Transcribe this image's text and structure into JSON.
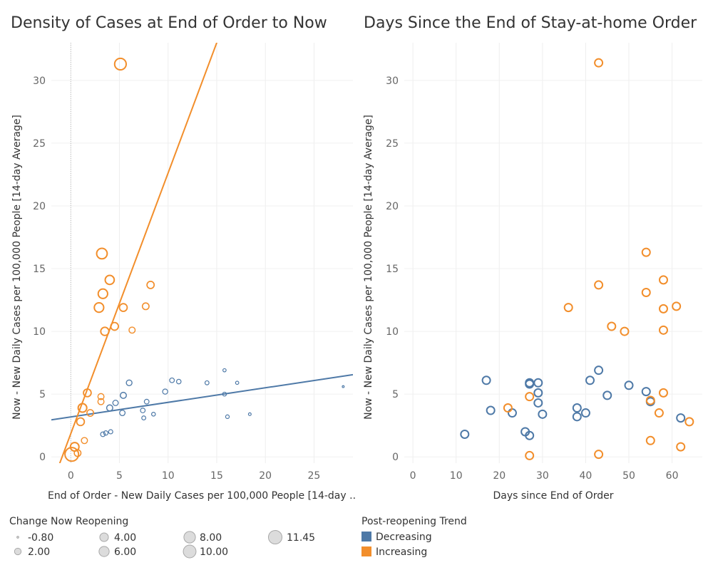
{
  "chart_data": [
    {
      "type": "scatter",
      "title": "Density of Cases at End of Order to Now",
      "xlabel": "End of Order - New Daily Cases per 100,000 People [14-day ..",
      "ylabel": "Now - New Daily Cases per 100,000 People [14-day Average]",
      "xlim": [
        -2,
        29
      ],
      "ylim": [
        -0.5,
        33
      ],
      "x_ticks": [
        "0",
        "5",
        "10",
        "15",
        "20",
        "25"
      ],
      "y_ticks": [
        "0",
        "5",
        "10",
        "15",
        "20",
        "25",
        "30"
      ],
      "grid": true,
      "series": [
        {
          "name": "Decreasing",
          "color": "#4e79a7",
          "points": [
            {
              "x": 3.3,
              "y": 1.8,
              "size": 0.5
            },
            {
              "x": 3.6,
              "y": 1.9,
              "size": 0.3
            },
            {
              "x": 4.1,
              "y": 2.0,
              "size": 0.2
            },
            {
              "x": 4.0,
              "y": 3.9,
              "size": 1.5
            },
            {
              "x": 4.6,
              "y": 4.3,
              "size": 1.0
            },
            {
              "x": 5.3,
              "y": 3.5,
              "size": 1.0
            },
            {
              "x": 5.4,
              "y": 4.9,
              "size": 1.5
            },
            {
              "x": 6.0,
              "y": 5.9,
              "size": 1.2
            },
            {
              "x": 7.4,
              "y": 3.7,
              "size": 0.5
            },
            {
              "x": 7.5,
              "y": 3.1,
              "size": 0.1
            },
            {
              "x": 7.8,
              "y": 4.4,
              "size": 0.5
            },
            {
              "x": 8.5,
              "y": 3.4,
              "size": 0.0
            },
            {
              "x": 9.7,
              "y": 5.2,
              "size": 0.8
            },
            {
              "x": 10.4,
              "y": 6.1,
              "size": 0.5
            },
            {
              "x": 11.1,
              "y": 6.0,
              "size": 0.4
            },
            {
              "x": 14.0,
              "y": 5.9,
              "size": 0.1
            },
            {
              "x": 15.8,
              "y": 6.9,
              "size": -0.3
            },
            {
              "x": 15.8,
              "y": 5.0,
              "size": 0.0
            },
            {
              "x": 16.1,
              "y": 3.2,
              "size": -0.1
            },
            {
              "x": 17.1,
              "y": 5.9,
              "size": -0.3
            },
            {
              "x": 18.4,
              "y": 3.4,
              "size": -0.5
            },
            {
              "x": 28.0,
              "y": 5.6,
              "size": -0.8
            }
          ]
        },
        {
          "name": "Increasing",
          "color": "#f28e2b",
          "points": [
            {
              "x": 5.1,
              "y": 31.3,
              "size": 8.0
            },
            {
              "x": 3.2,
              "y": 16.2,
              "size": 6.5
            },
            {
              "x": 4.0,
              "y": 14.1,
              "size": 4.5
            },
            {
              "x": 8.2,
              "y": 13.7,
              "size": 2.5
            },
            {
              "x": 3.3,
              "y": 13.0,
              "size": 5.0
            },
            {
              "x": 2.9,
              "y": 11.9,
              "size": 5.0
            },
            {
              "x": 5.4,
              "y": 11.9,
              "size": 3.0
            },
            {
              "x": 7.7,
              "y": 12.0,
              "size": 2.0
            },
            {
              "x": 4.5,
              "y": 10.4,
              "size": 3.0
            },
            {
              "x": 3.5,
              "y": 10.0,
              "size": 3.5
            },
            {
              "x": 6.3,
              "y": 10.1,
              "size": 1.5
            },
            {
              "x": 1.7,
              "y": 5.1,
              "size": 3.0
            },
            {
              "x": 3.1,
              "y": 4.8,
              "size": 1.5
            },
            {
              "x": 3.1,
              "y": 4.4,
              "size": 1.5
            },
            {
              "x": 1.2,
              "y": 3.9,
              "size": 4.0
            },
            {
              "x": 2.0,
              "y": 3.5,
              "size": 2.0
            },
            {
              "x": 1.0,
              "y": 2.8,
              "size": 3.0
            },
            {
              "x": 1.4,
              "y": 1.3,
              "size": 1.5
            },
            {
              "x": 0.4,
              "y": 0.8,
              "size": 4.0
            },
            {
              "x": 0.7,
              "y": 0.3,
              "size": 2.0
            },
            {
              "x": 0.1,
              "y": 0.2,
              "size": 11.45
            }
          ]
        }
      ]
    },
    {
      "type": "scatter",
      "title": "Days Since the End of Stay-at-home Order",
      "xlabel": "Days since End of Order",
      "ylabel": "Now - New Daily Cases per 100,000 People [14-day Average]",
      "xlim": [
        -2,
        67
      ],
      "ylim": [
        -0.5,
        33
      ],
      "x_ticks": [
        "0",
        "10",
        "20",
        "30",
        "40",
        "50",
        "60"
      ],
      "y_ticks": [
        "0",
        "5",
        "10",
        "15",
        "20",
        "25",
        "30"
      ],
      "grid": true,
      "series": [
        {
          "name": "Decreasing",
          "color": "#4e79a7",
          "points": [
            {
              "x": 12,
              "y": 1.8
            },
            {
              "x": 17,
              "y": 6.1
            },
            {
              "x": 18,
              "y": 3.7
            },
            {
              "x": 23,
              "y": 3.5
            },
            {
              "x": 26,
              "y": 2.0
            },
            {
              "x": 27,
              "y": 1.7
            },
            {
              "x": 27,
              "y": 5.9
            },
            {
              "x": 27,
              "y": 5.8
            },
            {
              "x": 29,
              "y": 5.9
            },
            {
              "x": 29,
              "y": 5.1
            },
            {
              "x": 29,
              "y": 4.3
            },
            {
              "x": 30,
              "y": 3.4
            },
            {
              "x": 38,
              "y": 3.9
            },
            {
              "x": 38,
              "y": 3.2
            },
            {
              "x": 40,
              "y": 3.5
            },
            {
              "x": 41,
              "y": 6.1
            },
            {
              "x": 43,
              "y": 6.9
            },
            {
              "x": 45,
              "y": 4.9
            },
            {
              "x": 50,
              "y": 5.7
            },
            {
              "x": 54,
              "y": 5.2
            },
            {
              "x": 55,
              "y": 4.4
            },
            {
              "x": 62,
              "y": 3.1
            }
          ]
        },
        {
          "name": "Increasing",
          "color": "#f28e2b",
          "points": [
            {
              "x": 43,
              "y": 31.4
            },
            {
              "x": 54,
              "y": 16.3
            },
            {
              "x": 58,
              "y": 14.1
            },
            {
              "x": 43,
              "y": 13.7
            },
            {
              "x": 54,
              "y": 13.1
            },
            {
              "x": 36,
              "y": 11.9
            },
            {
              "x": 58,
              "y": 11.8
            },
            {
              "x": 61,
              "y": 12.0
            },
            {
              "x": 46,
              "y": 10.4
            },
            {
              "x": 49,
              "y": 10.0
            },
            {
              "x": 58,
              "y": 10.1
            },
            {
              "x": 58,
              "y": 5.1
            },
            {
              "x": 55,
              "y": 4.5
            },
            {
              "x": 27,
              "y": 4.8
            },
            {
              "x": 22,
              "y": 3.9
            },
            {
              "x": 57,
              "y": 3.5
            },
            {
              "x": 64,
              "y": 2.8
            },
            {
              "x": 55,
              "y": 1.3
            },
            {
              "x": 62,
              "y": 0.8
            },
            {
              "x": 27,
              "y": 0.1
            },
            {
              "x": 43,
              "y": 0.2
            }
          ]
        }
      ]
    }
  ],
  "legends": {
    "size": {
      "title": "Change Now Reopening",
      "items": [
        {
          "value": -0.8,
          "label": "-0.80"
        },
        {
          "value": 2.0,
          "label": "2.00"
        },
        {
          "value": 4.0,
          "label": "4.00"
        },
        {
          "value": 6.0,
          "label": "6.00"
        },
        {
          "value": 8.0,
          "label": "8.00"
        },
        {
          "value": 10.0,
          "label": "10.00"
        },
        {
          "value": 11.45,
          "label": "11.45"
        }
      ]
    },
    "color": {
      "title": "Post-reopening Trend",
      "items": [
        {
          "label": "Decreasing",
          "color": "#4e79a7"
        },
        {
          "label": "Increasing",
          "color": "#f28e2b"
        }
      ]
    }
  }
}
